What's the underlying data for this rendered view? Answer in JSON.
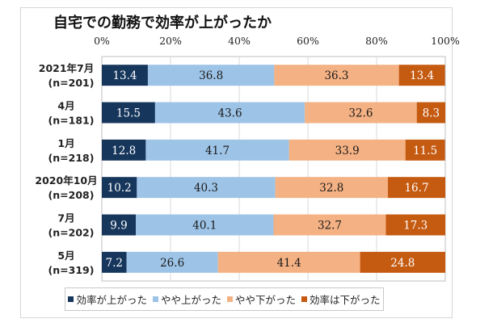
{
  "chart_data": {
    "type": "bar",
    "stacked": true,
    "orientation": "horizontal",
    "title": "自宅での勤務で効率が上がったか",
    "xlabel": "",
    "ylabel": "",
    "xlim": [
      0,
      100
    ],
    "x_ticks": [
      "0%",
      "20%",
      "40%",
      "60%",
      "80%",
      "100%"
    ],
    "grid": true,
    "legend_position": "bottom",
    "categories": [
      {
        "label": "2021年7月",
        "sub": "(n=201)"
      },
      {
        "label": "4月",
        "sub": "(n=181)"
      },
      {
        "label": "1月",
        "sub": "(n=218)"
      },
      {
        "label": "2020年10月",
        "sub": "(n=208)"
      },
      {
        "label": "7月",
        "sub": "(n=202)"
      },
      {
        "label": "5月",
        "sub": "(n=319)"
      }
    ],
    "series": [
      {
        "name": "効率が上がった",
        "color": "#16365c",
        "label_color": "#ffffff",
        "values": [
          13.4,
          15.5,
          12.8,
          10.2,
          9.9,
          7.2
        ]
      },
      {
        "name": "やや上がった",
        "color": "#9dc3e6",
        "label_color": "#1a1a1a",
        "values": [
          36.8,
          43.6,
          41.7,
          40.3,
          40.1,
          26.6
        ]
      },
      {
        "name": "やや下がった",
        "color": "#f4b183",
        "label_color": "#1a1a1a",
        "values": [
          36.3,
          32.6,
          33.9,
          32.8,
          32.7,
          41.4
        ]
      },
      {
        "name": "効率は下がった",
        "color": "#c55a11",
        "label_color": "#ffffff",
        "values": [
          13.4,
          8.3,
          11.5,
          16.7,
          17.3,
          24.8
        ]
      }
    ]
  }
}
